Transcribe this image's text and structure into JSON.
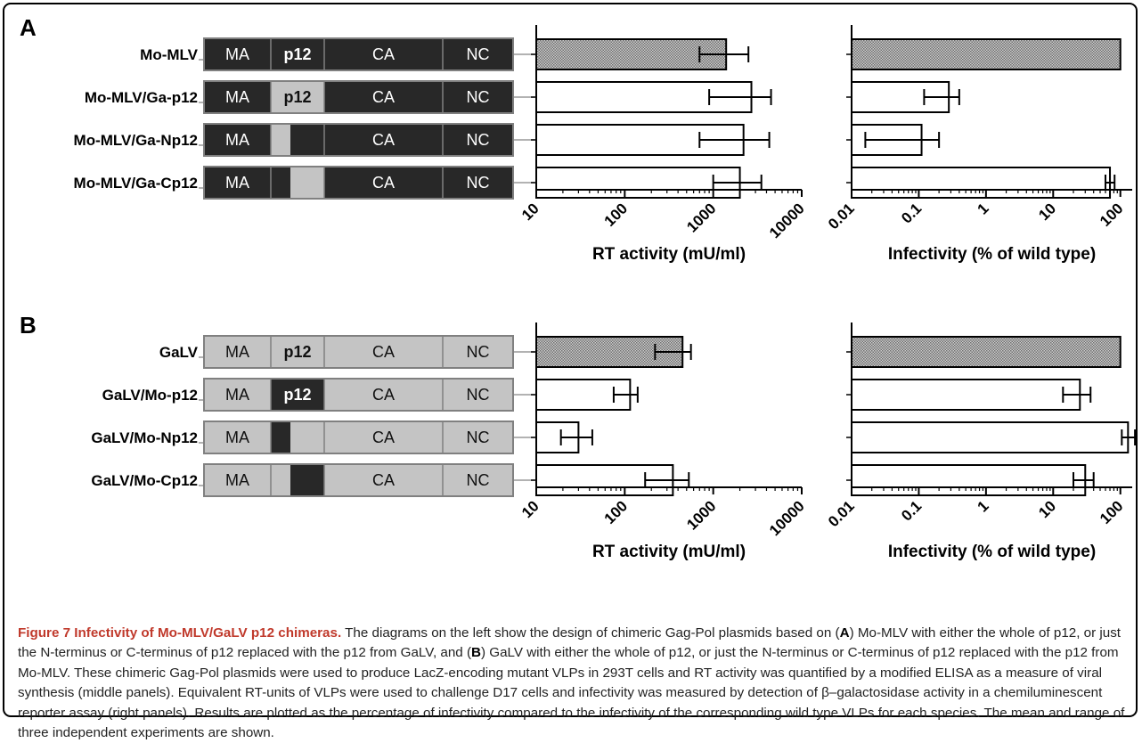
{
  "panels": [
    {
      "label": "A",
      "rows": [
        {
          "name": "Mo-MLV",
          "scheme": "mlv",
          "p12": "full",
          "rt": {
            "mean": 1400,
            "low": 700,
            "high": 2500
          },
          "inf": {
            "mean": 100,
            "low": null,
            "high": null
          },
          "wildtype": true
        },
        {
          "name": "Mo-MLV/Ga-p12",
          "scheme": "mlv",
          "p12": "swap",
          "rt": {
            "mean": 2700,
            "low": 900,
            "high": 4500
          },
          "inf": {
            "mean": 0.28,
            "low": 0.12,
            "high": 0.4
          },
          "wildtype": false
        },
        {
          "name": "Mo-MLV/Ga-Np12",
          "scheme": "mlv",
          "p12": "N",
          "rt": {
            "mean": 2200,
            "low": 700,
            "high": 4300
          },
          "inf": {
            "mean": 0.11,
            "low": 0.016,
            "high": 0.2
          },
          "wildtype": false
        },
        {
          "name": "Mo-MLV/Ga-Cp12",
          "scheme": "mlv",
          "p12": "C",
          "rt": {
            "mean": 2000,
            "low": 1000,
            "high": 3500
          },
          "inf": {
            "mean": 70,
            "low": 60,
            "high": 82
          },
          "wildtype": false
        }
      ]
    },
    {
      "label": "B",
      "rows": [
        {
          "name": "GaLV",
          "scheme": "galv",
          "p12": "full",
          "rt": {
            "mean": 450,
            "low": 220,
            "high": 560
          },
          "inf": {
            "mean": 100,
            "low": null,
            "high": null
          },
          "wildtype": true
        },
        {
          "name": "GaLV/Mo-p12",
          "scheme": "galv",
          "p12": "swap",
          "rt": {
            "mean": 115,
            "low": 75,
            "high": 140
          },
          "inf": {
            "mean": 25,
            "low": 14,
            "high": 36
          },
          "wildtype": false
        },
        {
          "name": "GaLV/Mo-Np12",
          "scheme": "galv",
          "p12": "N",
          "rt": {
            "mean": 30,
            "low": 19,
            "high": 43
          },
          "inf": {
            "mean": 130,
            "low": 105,
            "high": 165
          },
          "wildtype": false
        },
        {
          "name": "GaLV/Mo-Cp12",
          "scheme": "galv",
          "p12": "C",
          "rt": {
            "mean": 350,
            "low": 170,
            "high": 530
          },
          "inf": {
            "mean": 30,
            "low": 20,
            "high": 40
          },
          "wildtype": false
        }
      ]
    }
  ],
  "segment_labels": {
    "ma": "MA",
    "p12": "p12",
    "ca": "CA",
    "nc": "NC"
  },
  "colors": {
    "mlv_dark": "#282828",
    "galv_light": "#c4c4c4",
    "outline": "#808080",
    "hatch": "#808080",
    "caption_title": "#c0392b"
  },
  "chart_data": [
    {
      "type": "bar",
      "orientation": "horizontal",
      "panel": "A",
      "xlabel": "RT activity (mU/ml)",
      "xscale": "log",
      "xlim": [
        10,
        10000
      ],
      "xticks": [
        "10",
        "100",
        "1000",
        "10000"
      ],
      "categories": [
        "Mo-MLV",
        "Mo-MLV/Ga-p12",
        "Mo-MLV/Ga-Np12",
        "Mo-MLV/Ga-Cp12"
      ],
      "values": [
        1400,
        2700,
        2200,
        2000
      ],
      "error_low": [
        700,
        900,
        700,
        1000
      ],
      "error_high": [
        2500,
        4500,
        4300,
        3500
      ]
    },
    {
      "type": "bar",
      "orientation": "horizontal",
      "panel": "A",
      "xlabel": "Infectivity (% of wild type)",
      "xscale": "log",
      "xlim": [
        0.01,
        150
      ],
      "xticks": [
        "0.01",
        "0.1",
        "1",
        "10",
        "100"
      ],
      "categories": [
        "Mo-MLV",
        "Mo-MLV/Ga-p12",
        "Mo-MLV/Ga-Np12",
        "Mo-MLV/Ga-Cp12"
      ],
      "values": [
        100,
        0.28,
        0.11,
        70
      ],
      "error_low": [
        null,
        0.12,
        0.016,
        60
      ],
      "error_high": [
        null,
        0.4,
        0.2,
        82
      ]
    },
    {
      "type": "bar",
      "orientation": "horizontal",
      "panel": "B",
      "xlabel": "RT activity (mU/ml)",
      "xscale": "log",
      "xlim": [
        10,
        10000
      ],
      "xticks": [
        "10",
        "100",
        "1000",
        "10000"
      ],
      "categories": [
        "GaLV",
        "GaLV/Mo-p12",
        "GaLV/Mo-Np12",
        "GaLV/Mo-Cp12"
      ],
      "values": [
        450,
        115,
        30,
        350
      ],
      "error_low": [
        220,
        75,
        19,
        170
      ],
      "error_high": [
        560,
        140,
        43,
        530
      ]
    },
    {
      "type": "bar",
      "orientation": "horizontal",
      "panel": "B",
      "xlabel": "Infectivity (% of wild type)",
      "xscale": "log",
      "xlim": [
        0.01,
        150
      ],
      "xticks": [
        "0.01",
        "0.1",
        "1",
        "10",
        "100"
      ],
      "categories": [
        "GaLV",
        "GaLV/Mo-p12",
        "GaLV/Mo-Np12",
        "GaLV/Mo-Cp12"
      ],
      "values": [
        100,
        25,
        130,
        30
      ],
      "error_low": [
        null,
        14,
        105,
        20
      ],
      "error_high": [
        null,
        36,
        165,
        40
      ]
    }
  ],
  "caption": {
    "title": "Figure 7 Infectivity of Mo-MLV/GaLV p12 chimeras.",
    "seg1": " The diagrams on the left show the design of chimeric Gag-Pol plasmids based on (",
    "ref_a": "A",
    "seg2": ") Mo-MLV with either the whole of p12, or just the N-terminus or C-terminus of p12 replaced with the p12 from GaLV, and (",
    "ref_b": "B",
    "seg3": ") GaLV with either the whole of p12, or just the N-terminus or C-terminus of p12 replaced with the p12 from Mo-MLV. These chimeric Gag-Pol plasmids were used to produce LacZ-encoding mutant VLPs in 293T cells and RT activity was quantified by a modified ELISA as a measure of viral synthesis (middle panels). Equivalent RT-units of VLPs were used to challenge D17 cells and infectivity was measured by detection of β–galactosidase activity in a chemiluminescent reporter assay (right panels). Results are plotted as the percentage of infectivity compared to the infectivity of the corresponding wild type VLPs for each species. The mean and range of three independent experiments are shown."
  }
}
